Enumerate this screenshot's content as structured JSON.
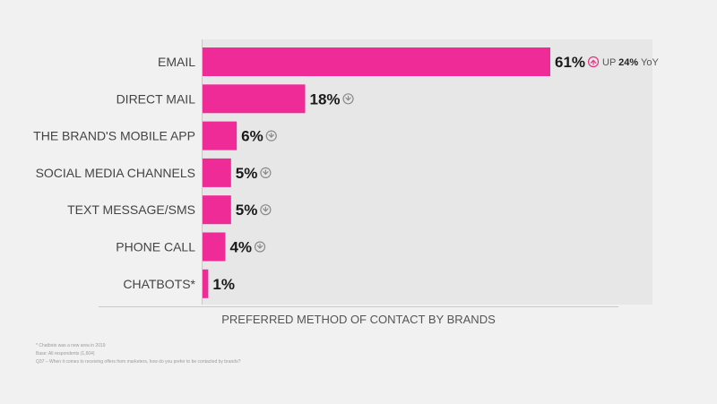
{
  "chart_data": {
    "type": "bar",
    "orientation": "horizontal",
    "categories": [
      "EMAIL",
      "DIRECT MAIL",
      "THE BRAND'S MOBILE APP",
      "SOCIAL MEDIA CHANNELS",
      "TEXT MESSAGE/SMS",
      "PHONE CALL",
      "CHATBOTS*"
    ],
    "values": [
      61,
      18,
      6,
      5,
      5,
      4,
      1
    ],
    "value_labels": [
      "61%",
      "18%",
      "6%",
      "5%",
      "5%",
      "4%",
      "1%"
    ],
    "trend": [
      "up",
      "down",
      "down",
      "down",
      "down",
      "down",
      "none"
    ],
    "yoy_note": {
      "prefix": "UP",
      "value": "24%",
      "suffix": "YoY"
    },
    "xlabel": "PREFERRED METHOD OF CONTACT BY BRANDS",
    "xlim": [
      0,
      61
    ],
    "bar_color": "#ee2b97",
    "up_color": "#e8307f",
    "down_color": "#8a8a8a",
    "grid": false
  },
  "footnotes": [
    "* Chatbots was a new area in 2019",
    "Base: All respondents (1,604)",
    "Q37 – When it comes to receiving offers from marketers, how do you prefer to be contacted by brands?"
  ]
}
